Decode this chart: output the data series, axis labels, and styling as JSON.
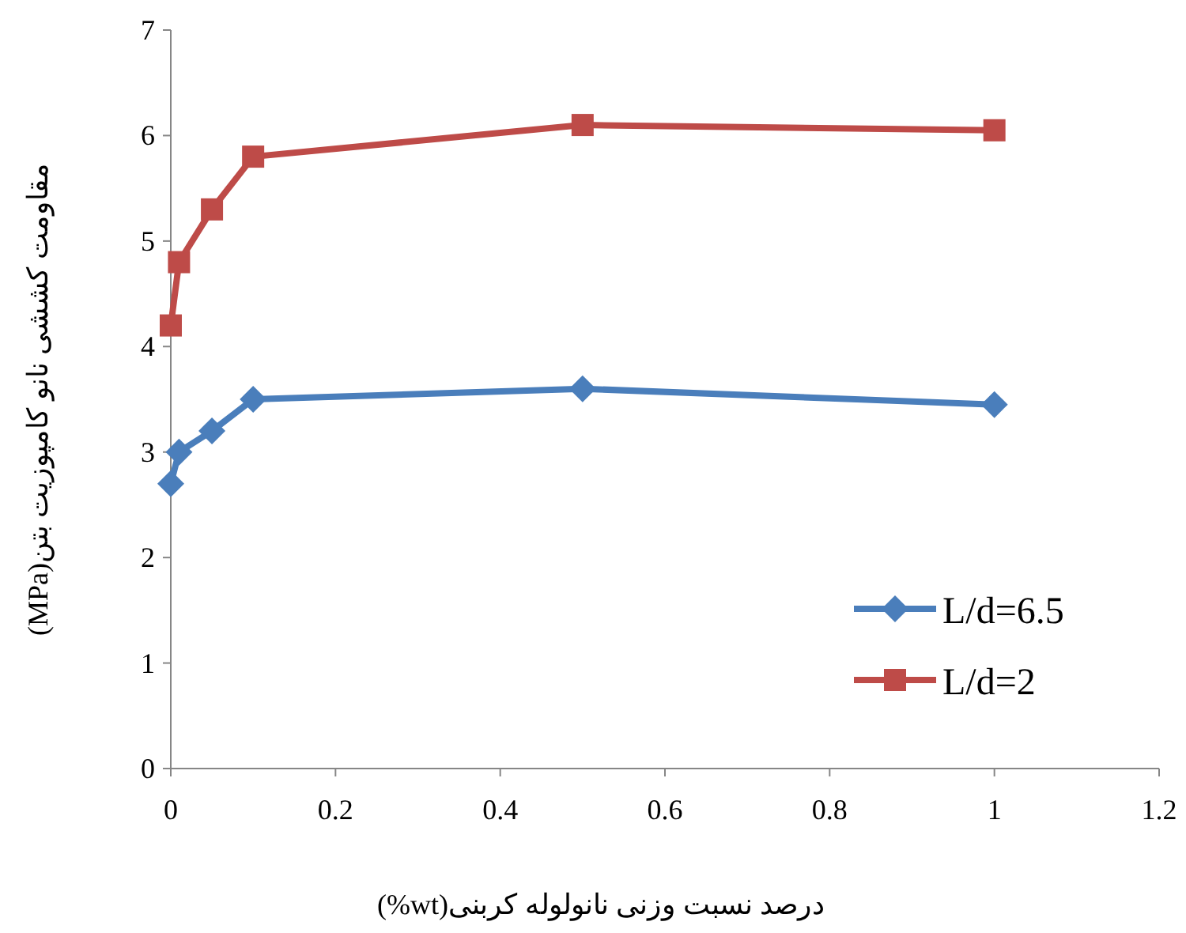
{
  "chart_data": {
    "type": "line",
    "xlabel": "درصد نسبت وزنی نانولوله کربنی(wt%)",
    "ylabel": "مقاومت کششی نانو کامپوزیت بتن(MPa)",
    "x": [
      0,
      0.01,
      0.05,
      0.1,
      0.5,
      1
    ],
    "series": [
      {
        "name": "L/d=6.5",
        "color": "#4a7ebb",
        "marker": "diamond",
        "values": [
          2.7,
          3.0,
          3.2,
          3.5,
          3.6,
          3.45
        ]
      },
      {
        "name": "L/d=2",
        "color": "#be4b48",
        "marker": "square",
        "values": [
          4.2,
          4.8,
          5.3,
          5.8,
          6.1,
          6.05
        ]
      }
    ],
    "xlim": [
      0,
      1.2
    ],
    "xticks": [
      0,
      0.2,
      0.4,
      0.6,
      0.8,
      1,
      1.2
    ],
    "ylim": [
      0,
      7
    ],
    "yticks": [
      0,
      1,
      2,
      3,
      4,
      5,
      6,
      7
    ],
    "grid": false,
    "legend": "bottom right"
  }
}
